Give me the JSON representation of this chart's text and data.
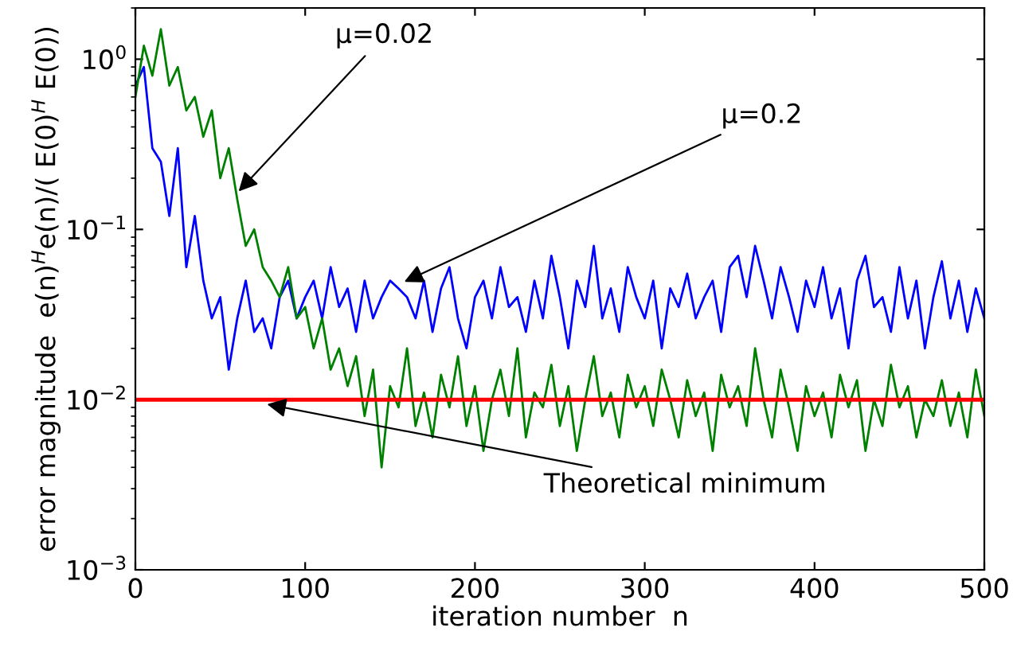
{
  "chart_data": {
    "type": "line",
    "xlabel": "iteration number  n",
    "ylabel": "error magnitude  e(n)$^{H}$e(n)/( E(0)$^{H}$ E(0))",
    "log": "y",
    "xlim": [
      0,
      500
    ],
    "xticks": [
      0,
      100,
      200,
      300,
      400,
      500
    ],
    "ylim": [
      0.001,
      2
    ],
    "yticks": [
      {
        "value": 0.001,
        "label": "10$^{−3}$"
      },
      {
        "value": 0.01,
        "label": "10$^{−2}$"
      },
      {
        "value": 0.1,
        "label": "10$^{−1}$"
      },
      {
        "value": 1,
        "label": "10$^{0}$"
      }
    ],
    "x": [
      0,
      5,
      10,
      15,
      20,
      25,
      30,
      35,
      40,
      45,
      50,
      55,
      60,
      65,
      70,
      75,
      80,
      85,
      90,
      95,
      100,
      105,
      110,
      115,
      120,
      125,
      130,
      135,
      140,
      145,
      150,
      155,
      160,
      165,
      170,
      175,
      180,
      185,
      190,
      195,
      200,
      205,
      210,
      215,
      220,
      225,
      230,
      235,
      240,
      245,
      250,
      255,
      260,
      265,
      270,
      275,
      280,
      285,
      290,
      295,
      300,
      305,
      310,
      315,
      320,
      325,
      330,
      335,
      340,
      345,
      350,
      355,
      360,
      365,
      370,
      375,
      380,
      385,
      390,
      395,
      400,
      405,
      410,
      415,
      420,
      425,
      430,
      435,
      440,
      445,
      450,
      455,
      460,
      465,
      470,
      475,
      480,
      485,
      490,
      495,
      500
    ],
    "series": [
      {
        "color": "#0000ff",
        "values": [
          0.7,
          0.9,
          0.3,
          0.25,
          0.12,
          0.3,
          0.06,
          0.12,
          0.05,
          0.03,
          0.04,
          0.015,
          0.03,
          0.05,
          0.025,
          0.03,
          0.02,
          0.04,
          0.05,
          0.03,
          0.04,
          0.05,
          0.03,
          0.06,
          0.035,
          0.045,
          0.025,
          0.05,
          0.03,
          0.04,
          0.05,
          0.045,
          0.04,
          0.03,
          0.05,
          0.025,
          0.045,
          0.06,
          0.03,
          0.02,
          0.04,
          0.05,
          0.03,
          0.06,
          0.035,
          0.04,
          0.025,
          0.05,
          0.03,
          0.07,
          0.04,
          0.02,
          0.05,
          0.035,
          0.08,
          0.03,
          0.045,
          0.025,
          0.06,
          0.04,
          0.03,
          0.05,
          0.02,
          0.045,
          0.035,
          0.055,
          0.03,
          0.04,
          0.05,
          0.025,
          0.06,
          0.07,
          0.04,
          0.08,
          0.05,
          0.03,
          0.06,
          0.04,
          0.025,
          0.05,
          0.035,
          0.06,
          0.03,
          0.045,
          0.02,
          0.05,
          0.07,
          0.035,
          0.04,
          0.025,
          0.06,
          0.03,
          0.05,
          0.02,
          0.04,
          0.065,
          0.03,
          0.05,
          0.025,
          0.045,
          0.03
        ]
      },
      {
        "color": "#008000",
        "values": [
          0.6,
          1.2,
          0.8,
          1.5,
          0.7,
          0.9,
          0.5,
          0.6,
          0.35,
          0.5,
          0.2,
          0.3,
          0.15,
          0.08,
          0.1,
          0.06,
          0.05,
          0.04,
          0.06,
          0.03,
          0.035,
          0.02,
          0.03,
          0.015,
          0.02,
          0.012,
          0.018,
          0.008,
          0.015,
          0.004,
          0.012,
          0.009,
          0.02,
          0.007,
          0.011,
          0.006,
          0.014,
          0.009,
          0.018,
          0.007,
          0.012,
          0.005,
          0.01,
          0.015,
          0.008,
          0.02,
          0.006,
          0.011,
          0.009,
          0.016,
          0.007,
          0.012,
          0.005,
          0.01,
          0.018,
          0.008,
          0.011,
          0.006,
          0.014,
          0.009,
          0.012,
          0.007,
          0.015,
          0.01,
          0.006,
          0.013,
          0.008,
          0.011,
          0.005,
          0.014,
          0.009,
          0.012,
          0.007,
          0.02,
          0.01,
          0.006,
          0.015,
          0.009,
          0.005,
          0.012,
          0.008,
          0.011,
          0.006,
          0.014,
          0.009,
          0.013,
          0.005,
          0.01,
          0.007,
          0.016,
          0.009,
          0.012,
          0.006,
          0.01,
          0.008,
          0.013,
          0.007,
          0.011,
          0.006,
          0.015,
          0.008
        ]
      }
    ],
    "ref_lines": [
      {
        "axis": "y",
        "value": 0.01,
        "color": "#ff0000"
      }
    ],
    "annotations": [
      {
        "text": "μ=0.02",
        "x": 59,
        "y": 0.16
      },
      {
        "text": "μ=0.2",
        "x": 156,
        "y": 0.048
      },
      {
        "text": "Theoretical minimum",
        "x": 75,
        "y": 0.0095
      }
    ],
    "grid": false,
    "legend": false
  }
}
